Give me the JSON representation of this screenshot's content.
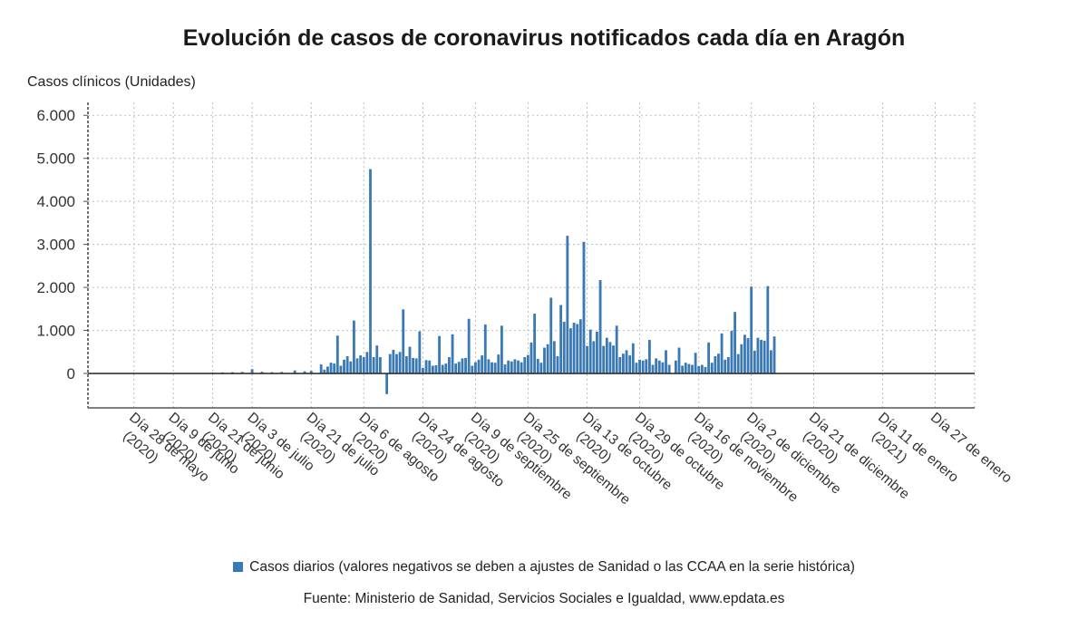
{
  "chart_data": {
    "type": "bar",
    "title": "Evolución de casos de coronavirus notificados cada día en Aragón",
    "ylabel": "Casos clínicos (Unidades)",
    "xlabel": "",
    "ylim": [
      -800,
      6300
    ],
    "yticks": [
      0,
      1000,
      2000,
      3000,
      4000,
      5000,
      6000
    ],
    "ytick_labels": [
      "0",
      "1.000",
      "2.000",
      "3.000",
      "4.000",
      "5.000",
      "6.000"
    ],
    "grid": true,
    "legend_position": "bottom",
    "x_range": [
      "2020-05-14",
      "2021-02-08"
    ],
    "x_tick_labels": [
      {
        "date": "2020-05-28",
        "lines": [
          "Día 28 de mayo",
          "(2020)"
        ]
      },
      {
        "date": "2020-06-09",
        "lines": [
          "Día 9 de junio",
          "(2020)"
        ]
      },
      {
        "date": "2020-06-21",
        "lines": [
          "Día 21 de junio",
          "(2020)"
        ]
      },
      {
        "date": "2020-07-03",
        "lines": [
          "Día 3 de julio",
          "(2020)"
        ]
      },
      {
        "date": "2020-07-21",
        "lines": [
          "Día 21 de julio",
          "(2020)"
        ]
      },
      {
        "date": "2020-08-06",
        "lines": [
          "Día 6 de agosto",
          "(2020)"
        ]
      },
      {
        "date": "2020-08-24",
        "lines": [
          "Día 24 de agosto",
          "(2020)"
        ]
      },
      {
        "date": "2020-09-09",
        "lines": [
          "Día 9 de septiembre",
          "(2020)"
        ]
      },
      {
        "date": "2020-09-25",
        "lines": [
          "Día 25 de septiembre",
          "(2020)"
        ]
      },
      {
        "date": "2020-10-13",
        "lines": [
          "Día 13 de octubre",
          "(2020)"
        ]
      },
      {
        "date": "2020-10-29",
        "lines": [
          "Día 29 de octubre",
          "(2020)"
        ]
      },
      {
        "date": "2020-11-16",
        "lines": [
          "Día 16 de noviembre",
          "(2020)"
        ]
      },
      {
        "date": "2020-12-02",
        "lines": [
          "Día 2 de diciembre",
          "(2020)"
        ]
      },
      {
        "date": "2020-12-21",
        "lines": [
          "Día 21 de diciembre",
          "(2020)"
        ]
      },
      {
        "date": "2021-01-11",
        "lines": [
          "Día 11 de enero",
          "(2021)"
        ]
      },
      {
        "date": "2021-01-27",
        "lines": [
          "Día 27 de enero"
        ]
      }
    ],
    "series": [
      {
        "name": "Casos diarios (valores negativos se deben a ajustes de Sanidad o las CCAA en la serie histórica)",
        "color": "#3a79b4",
        "points": [
          {
            "x": "2020-05-21",
            "y": 10
          },
          {
            "x": "2020-05-28",
            "y": 15
          },
          {
            "x": "2020-06-02",
            "y": 10
          },
          {
            "x": "2020-06-09",
            "y": 12
          },
          {
            "x": "2020-06-14",
            "y": 10
          },
          {
            "x": "2020-06-21",
            "y": 20
          },
          {
            "x": "2020-06-24",
            "y": 25
          },
          {
            "x": "2020-06-27",
            "y": 30
          },
          {
            "x": "2020-06-30",
            "y": 35
          },
          {
            "x": "2020-07-03",
            "y": 100
          },
          {
            "x": "2020-07-06",
            "y": 40
          },
          {
            "x": "2020-07-09",
            "y": 30
          },
          {
            "x": "2020-07-12",
            "y": 35
          },
          {
            "x": "2020-07-16",
            "y": 70
          },
          {
            "x": "2020-07-19",
            "y": 50
          },
          {
            "x": "2020-07-21",
            "y": 60
          },
          {
            "x": "2020-07-24",
            "y": 210
          },
          {
            "x": "2020-07-25",
            "y": 90
          },
          {
            "x": "2020-07-26",
            "y": 160
          },
          {
            "x": "2020-07-27",
            "y": 250
          },
          {
            "x": "2020-07-28",
            "y": 230
          },
          {
            "x": "2020-07-29",
            "y": 880
          },
          {
            "x": "2020-07-30",
            "y": 180
          },
          {
            "x": "2020-07-31",
            "y": 320
          },
          {
            "x": "2020-08-01",
            "y": 400
          },
          {
            "x": "2020-08-02",
            "y": 280
          },
          {
            "x": "2020-08-03",
            "y": 1230
          },
          {
            "x": "2020-08-04",
            "y": 350
          },
          {
            "x": "2020-08-05",
            "y": 420
          },
          {
            "x": "2020-08-06",
            "y": 380
          },
          {
            "x": "2020-08-07",
            "y": 500
          },
          {
            "x": "2020-08-08",
            "y": 4750
          },
          {
            "x": "2020-08-09",
            "y": 380
          },
          {
            "x": "2020-08-10",
            "y": 650
          },
          {
            "x": "2020-08-11",
            "y": 380
          },
          {
            "x": "2020-08-13",
            "y": -480
          },
          {
            "x": "2020-08-14",
            "y": 450
          },
          {
            "x": "2020-08-15",
            "y": 550
          },
          {
            "x": "2020-08-16",
            "y": 450
          },
          {
            "x": "2020-08-17",
            "y": 500
          },
          {
            "x": "2020-08-18",
            "y": 1490
          },
          {
            "x": "2020-08-19",
            "y": 400
          },
          {
            "x": "2020-08-20",
            "y": 620
          },
          {
            "x": "2020-08-21",
            "y": 360
          },
          {
            "x": "2020-08-22",
            "y": 350
          },
          {
            "x": "2020-08-23",
            "y": 980
          },
          {
            "x": "2020-08-24",
            "y": 130
          },
          {
            "x": "2020-08-25",
            "y": 310
          },
          {
            "x": "2020-08-26",
            "y": 300
          },
          {
            "x": "2020-08-27",
            "y": 180
          },
          {
            "x": "2020-08-28",
            "y": 190
          },
          {
            "x": "2020-08-29",
            "y": 870
          },
          {
            "x": "2020-08-30",
            "y": 200
          },
          {
            "x": "2020-08-31",
            "y": 230
          },
          {
            "x": "2020-09-01",
            "y": 380
          },
          {
            "x": "2020-09-02",
            "y": 910
          },
          {
            "x": "2020-09-03",
            "y": 230
          },
          {
            "x": "2020-09-04",
            "y": 270
          },
          {
            "x": "2020-09-05",
            "y": 350
          },
          {
            "x": "2020-09-06",
            "y": 360
          },
          {
            "x": "2020-09-07",
            "y": 1270
          },
          {
            "x": "2020-09-08",
            "y": 180
          },
          {
            "x": "2020-09-09",
            "y": 260
          },
          {
            "x": "2020-09-10",
            "y": 320
          },
          {
            "x": "2020-09-11",
            "y": 420
          },
          {
            "x": "2020-09-12",
            "y": 1140
          },
          {
            "x": "2020-09-13",
            "y": 330
          },
          {
            "x": "2020-09-14",
            "y": 260
          },
          {
            "x": "2020-09-15",
            "y": 250
          },
          {
            "x": "2020-09-16",
            "y": 440
          },
          {
            "x": "2020-09-17",
            "y": 1110
          },
          {
            "x": "2020-09-18",
            "y": 210
          },
          {
            "x": "2020-09-19",
            "y": 300
          },
          {
            "x": "2020-09-20",
            "y": 280
          },
          {
            "x": "2020-09-21",
            "y": 330
          },
          {
            "x": "2020-09-22",
            "y": 300
          },
          {
            "x": "2020-09-23",
            "y": 260
          },
          {
            "x": "2020-09-24",
            "y": 380
          },
          {
            "x": "2020-09-25",
            "y": 430
          },
          {
            "x": "2020-09-26",
            "y": 720
          },
          {
            "x": "2020-09-27",
            "y": 1390
          },
          {
            "x": "2020-09-28",
            "y": 340
          },
          {
            "x": "2020-09-29",
            "y": 250
          },
          {
            "x": "2020-09-30",
            "y": 600
          },
          {
            "x": "2020-10-01",
            "y": 680
          },
          {
            "x": "2020-10-02",
            "y": 1760
          },
          {
            "x": "2020-10-03",
            "y": 750
          },
          {
            "x": "2020-10-04",
            "y": 400
          },
          {
            "x": "2020-10-05",
            "y": 1590
          },
          {
            "x": "2020-10-06",
            "y": 1200
          },
          {
            "x": "2020-10-07",
            "y": 3200
          },
          {
            "x": "2020-10-08",
            "y": 1050
          },
          {
            "x": "2020-10-09",
            "y": 1180
          },
          {
            "x": "2020-10-10",
            "y": 1150
          },
          {
            "x": "2020-10-11",
            "y": 1260
          },
          {
            "x": "2020-10-12",
            "y": 3060
          },
          {
            "x": "2020-10-13",
            "y": 640
          },
          {
            "x": "2020-10-14",
            "y": 1020
          },
          {
            "x": "2020-10-15",
            "y": 750
          },
          {
            "x": "2020-10-16",
            "y": 970
          },
          {
            "x": "2020-10-17",
            "y": 2170
          },
          {
            "x": "2020-10-18",
            "y": 640
          },
          {
            "x": "2020-10-19",
            "y": 830
          },
          {
            "x": "2020-10-20",
            "y": 730
          },
          {
            "x": "2020-10-21",
            "y": 650
          },
          {
            "x": "2020-10-22",
            "y": 1110
          },
          {
            "x": "2020-10-23",
            "y": 380
          },
          {
            "x": "2020-10-24",
            "y": 460
          },
          {
            "x": "2020-10-25",
            "y": 540
          },
          {
            "x": "2020-10-26",
            "y": 420
          },
          {
            "x": "2020-10-27",
            "y": 700
          },
          {
            "x": "2020-10-28",
            "y": 250
          },
          {
            "x": "2020-10-29",
            "y": 320
          },
          {
            "x": "2020-10-30",
            "y": 300
          },
          {
            "x": "2020-10-31",
            "y": 330
          },
          {
            "x": "2020-11-01",
            "y": 780
          },
          {
            "x": "2020-11-02",
            "y": 200
          },
          {
            "x": "2020-11-03",
            "y": 350
          },
          {
            "x": "2020-11-04",
            "y": 300
          },
          {
            "x": "2020-11-05",
            "y": 260
          },
          {
            "x": "2020-11-06",
            "y": 540
          },
          {
            "x": "2020-11-07",
            "y": 200
          },
          {
            "x": "2020-11-09",
            "y": 300
          },
          {
            "x": "2020-11-10",
            "y": 600
          },
          {
            "x": "2020-11-11",
            "y": 180
          },
          {
            "x": "2020-11-12",
            "y": 250
          },
          {
            "x": "2020-11-13",
            "y": 220
          },
          {
            "x": "2020-11-14",
            "y": 200
          },
          {
            "x": "2020-11-15",
            "y": 480
          },
          {
            "x": "2020-11-16",
            "y": 170
          },
          {
            "x": "2020-11-17",
            "y": 200
          },
          {
            "x": "2020-11-18",
            "y": 150
          },
          {
            "x": "2020-11-19",
            "y": 720
          },
          {
            "x": "2020-11-20",
            "y": 250
          },
          {
            "x": "2020-11-21",
            "y": 400
          },
          {
            "x": "2020-11-22",
            "y": 460
          },
          {
            "x": "2020-11-23",
            "y": 930
          },
          {
            "x": "2020-11-24",
            "y": 320
          },
          {
            "x": "2020-11-25",
            "y": 380
          },
          {
            "x": "2020-11-26",
            "y": 990
          },
          {
            "x": "2020-11-27",
            "y": 1430
          },
          {
            "x": "2020-11-28",
            "y": 450
          },
          {
            "x": "2020-11-29",
            "y": 680
          },
          {
            "x": "2020-11-30",
            "y": 900
          },
          {
            "x": "2020-12-01",
            "y": 820
          },
          {
            "x": "2020-12-02",
            "y": 2020
          },
          {
            "x": "2020-12-03",
            "y": 530
          },
          {
            "x": "2020-12-04",
            "y": 830
          },
          {
            "x": "2020-12-05",
            "y": 780
          },
          {
            "x": "2020-12-06",
            "y": 760
          },
          {
            "x": "2020-12-07",
            "y": 2030
          },
          {
            "x": "2020-12-08",
            "y": 540
          },
          {
            "x": "2020-12-09",
            "y": 860
          }
        ]
      }
    ]
  },
  "legend": {
    "label": "Casos diarios (valores negativos se deben a ajustes de Sanidad o las CCAA en la serie histórica)"
  },
  "source": "Fuente: Ministerio de Sanidad, Servicios Sociales e Igualdad, www.epdata.es"
}
